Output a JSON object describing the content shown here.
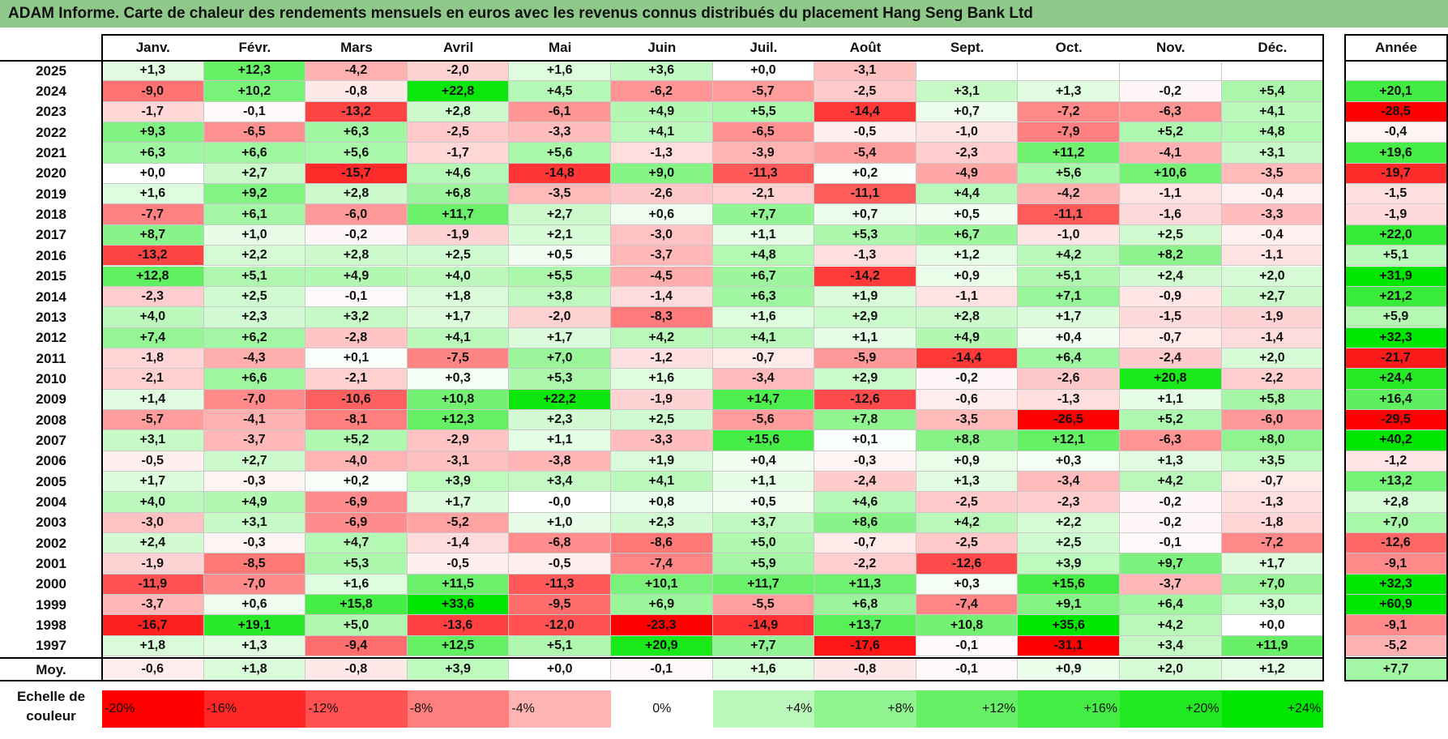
{
  "title": "ADAM Informe. Carte de chaleur des rendements mensuels en euros avec les revenus connus distribués du placement Hang Seng Bank Ltd",
  "chart_data": {
    "type": "heatmap",
    "columns": [
      "Janv.",
      "Févr.",
      "Mars",
      "Avril",
      "Mai",
      "Juin",
      "Juil.",
      "Août",
      "Sept.",
      "Oct.",
      "Nov.",
      "Déc."
    ],
    "year_column": "Année",
    "avg_label": "Moy.",
    "scale_label": "Echelle de couleur",
    "rows": [
      {
        "year": "2025",
        "values": [
          "+1,3",
          "+12,3",
          "-4,2",
          "-2,0",
          "+1,6",
          "+3,6",
          "+0,0",
          "-3,1",
          "",
          "",
          "",
          ""
        ],
        "annual": ""
      },
      {
        "year": "2024",
        "values": [
          "-9,0",
          "+10,2",
          "-0,8",
          "+22,8",
          "+4,5",
          "-6,2",
          "-5,7",
          "-2,5",
          "+3,1",
          "+1,3",
          "-0,2",
          "+5,4"
        ],
        "annual": "+20,1"
      },
      {
        "year": "2023",
        "values": [
          "-1,7",
          "-0,1",
          "-13,2",
          "+2,8",
          "-6,1",
          "+4,9",
          "+5,5",
          "-14,4",
          "+0,7",
          "-7,2",
          "-6,3",
          "+4,1"
        ],
        "annual": "-28,5"
      },
      {
        "year": "2022",
        "values": [
          "+9,3",
          "-6,5",
          "+6,3",
          "-2,5",
          "-3,3",
          "+4,1",
          "-6,5",
          "-0,5",
          "-1,0",
          "-7,9",
          "+5,2",
          "+4,8"
        ],
        "annual": "-0,4"
      },
      {
        "year": "2021",
        "values": [
          "+6,3",
          "+6,6",
          "+5,6",
          "-1,7",
          "+5,6",
          "-1,3",
          "-3,9",
          "-5,4",
          "-2,3",
          "+11,2",
          "-4,1",
          "+3,1"
        ],
        "annual": "+19,6"
      },
      {
        "year": "2020",
        "values": [
          "+0,0",
          "+2,7",
          "-15,7",
          "+4,6",
          "-14,8",
          "+9,0",
          "-11,3",
          "+0,2",
          "-4,9",
          "+5,6",
          "+10,6",
          "-3,5"
        ],
        "annual": "-19,7"
      },
      {
        "year": "2019",
        "values": [
          "+1,6",
          "+9,2",
          "+2,8",
          "+6,8",
          "-3,5",
          "-2,6",
          "-2,1",
          "-11,1",
          "+4,4",
          "-4,2",
          "-1,1",
          "-0,4"
        ],
        "annual": "-1,5"
      },
      {
        "year": "2018",
        "values": [
          "-7,7",
          "+6,1",
          "-6,0",
          "+11,7",
          "+2,7",
          "+0,6",
          "+7,7",
          "+0,7",
          "+0,5",
          "-11,1",
          "-1,6",
          "-3,3"
        ],
        "annual": "-1,9"
      },
      {
        "year": "2017",
        "values": [
          "+8,7",
          "+1,0",
          "-0,2",
          "-1,9",
          "+2,1",
          "-3,0",
          "+1,1",
          "+5,3",
          "+6,7",
          "-1,0",
          "+2,5",
          "-0,4"
        ],
        "annual": "+22,0"
      },
      {
        "year": "2016",
        "values": [
          "-13,2",
          "+2,2",
          "+2,8",
          "+2,5",
          "+0,5",
          "-3,7",
          "+4,8",
          "-1,3",
          "+1,2",
          "+4,2",
          "+8,2",
          "-1,1"
        ],
        "annual": "+5,1"
      },
      {
        "year": "2015",
        "values": [
          "+12,8",
          "+5,1",
          "+4,9",
          "+4,0",
          "+5,5",
          "-4,5",
          "+6,7",
          "-14,2",
          "+0,9",
          "+5,1",
          "+2,4",
          "+2,0"
        ],
        "annual": "+31,9"
      },
      {
        "year": "2014",
        "values": [
          "-2,3",
          "+2,5",
          "-0,1",
          "+1,8",
          "+3,8",
          "-1,4",
          "+6,3",
          "+1,9",
          "-1,1",
          "+7,1",
          "-0,9",
          "+2,7"
        ],
        "annual": "+21,2"
      },
      {
        "year": "2013",
        "values": [
          "+4,0",
          "+2,3",
          "+3,2",
          "+1,7",
          "-2,0",
          "-8,3",
          "+1,6",
          "+2,9",
          "+2,8",
          "+1,7",
          "-1,5",
          "-1,9"
        ],
        "annual": "+5,9"
      },
      {
        "year": "2012",
        "values": [
          "+7,4",
          "+6,2",
          "-2,8",
          "+4,1",
          "+1,7",
          "+4,2",
          "+4,1",
          "+1,1",
          "+4,9",
          "+0,4",
          "-0,7",
          "-1,4"
        ],
        "annual": "+32,3"
      },
      {
        "year": "2011",
        "values": [
          "-1,8",
          "-4,3",
          "+0,1",
          "-7,5",
          "+7,0",
          "-1,2",
          "-0,7",
          "-5,9",
          "-14,4",
          "+6,4",
          "-2,4",
          "+2,0"
        ],
        "annual": "-21,7"
      },
      {
        "year": "2010",
        "values": [
          "-2,1",
          "+6,6",
          "-2,1",
          "+0,3",
          "+5,3",
          "+1,6",
          "-3,4",
          "+2,9",
          "-0,2",
          "-2,6",
          "+20,8",
          "-2,2"
        ],
        "annual": "+24,4"
      },
      {
        "year": "2009",
        "values": [
          "+1,4",
          "-7,0",
          "-10,6",
          "+10,8",
          "+22,2",
          "-1,9",
          "+14,7",
          "-12,6",
          "-0,6",
          "-1,3",
          "+1,1",
          "+5,8"
        ],
        "annual": "+16,4"
      },
      {
        "year": "2008",
        "values": [
          "-5,7",
          "-4,1",
          "-8,1",
          "+12,3",
          "+2,3",
          "+2,5",
          "-5,6",
          "+7,8",
          "-3,5",
          "-26,5",
          "+5,2",
          "-6,0"
        ],
        "annual": "-29,5"
      },
      {
        "year": "2007",
        "values": [
          "+3,1",
          "-3,7",
          "+5,2",
          "-2,9",
          "+1,1",
          "-3,3",
          "+15,6",
          "+0,1",
          "+8,8",
          "+12,1",
          "-6,3",
          "+8,0"
        ],
        "annual": "+40,2"
      },
      {
        "year": "2006",
        "values": [
          "-0,5",
          "+2,7",
          "-4,0",
          "-3,1",
          "-3,8",
          "+1,9",
          "+0,4",
          "-0,3",
          "+0,9",
          "+0,3",
          "+1,3",
          "+3,5"
        ],
        "annual": "-1,2"
      },
      {
        "year": "2005",
        "values": [
          "+1,7",
          "-0,3",
          "+0,2",
          "+3,9",
          "+3,4",
          "+4,1",
          "+1,1",
          "-2,4",
          "+1,3",
          "-3,4",
          "+4,2",
          "-0,7"
        ],
        "annual": "+13,2"
      },
      {
        "year": "2004",
        "values": [
          "+4,0",
          "+4,9",
          "-6,9",
          "+1,7",
          "-0,0",
          "+0,8",
          "+0,5",
          "+4,6",
          "-2,5",
          "-2,3",
          "-0,2",
          "-1,3"
        ],
        "annual": "+2,8"
      },
      {
        "year": "2003",
        "values": [
          "-3,0",
          "+3,1",
          "-6,9",
          "-5,2",
          "+1,0",
          "+2,3",
          "+3,7",
          "+8,6",
          "+4,2",
          "+2,2",
          "-0,2",
          "-1,8"
        ],
        "annual": "+7,0"
      },
      {
        "year": "2002",
        "values": [
          "+2,4",
          "-0,3",
          "+4,7",
          "-1,4",
          "-6,8",
          "-8,6",
          "+5,0",
          "-0,7",
          "-2,5",
          "+2,5",
          "-0,1",
          "-7,2"
        ],
        "annual": "-12,6"
      },
      {
        "year": "2001",
        "values": [
          "-1,9",
          "-8,5",
          "+5,3",
          "-0,5",
          "-0,5",
          "-7,4",
          "+5,9",
          "-2,2",
          "-12,6",
          "+3,9",
          "+9,7",
          "+1,7"
        ],
        "annual": "-9,1"
      },
      {
        "year": "2000",
        "values": [
          "-11,9",
          "-7,0",
          "+1,6",
          "+11,5",
          "-11,3",
          "+10,1",
          "+11,7",
          "+11,3",
          "+0,3",
          "+15,6",
          "-3,7",
          "+7,0"
        ],
        "annual": "+32,3"
      },
      {
        "year": "1999",
        "values": [
          "-3,7",
          "+0,6",
          "+15,8",
          "+33,6",
          "-9,5",
          "+6,9",
          "-5,5",
          "+6,8",
          "-7,4",
          "+9,1",
          "+6,4",
          "+3,0"
        ],
        "annual": "+60,9"
      },
      {
        "year": "1998",
        "values": [
          "-16,7",
          "+19,1",
          "+5,0",
          "-13,6",
          "-12,0",
          "-23,3",
          "-14,9",
          "+13,7",
          "+10,8",
          "+35,6",
          "+4,2",
          "+0,0"
        ],
        "annual": "-9,1"
      },
      {
        "year": "1997",
        "values": [
          "+1,8",
          "+1,3",
          "-9,4",
          "+12,5",
          "+5,1",
          "+20,9",
          "+7,7",
          "-17,6",
          "-0,1",
          "-31,1",
          "+3,4",
          "+11,9"
        ],
        "annual": "-5,2"
      }
    ],
    "averages": [
      "-0,6",
      "+1,8",
      "-0,8",
      "+3,9",
      "+0,0",
      "-0,1",
      "+1,6",
      "-0,8",
      "-0,1",
      "+0,9",
      "+2,0",
      "+1,2"
    ],
    "average_annual": "+7,7",
    "scale": [
      {
        "label": "-20%",
        "value": -20
      },
      {
        "label": "-16%",
        "value": -16
      },
      {
        "label": "-12%",
        "value": -12
      },
      {
        "label": "-8%",
        "value": -8
      },
      {
        "label": "-4%",
        "value": -4
      },
      {
        "label": "0%",
        "value": 0
      },
      {
        "label": "+4%",
        "value": 4
      },
      {
        "label": "+8%",
        "value": 8
      },
      {
        "label": "+12%",
        "value": 12
      },
      {
        "label": "+16%",
        "value": 16
      },
      {
        "label": "+20%",
        "value": 20
      },
      {
        "label": "+24%",
        "value": 24
      }
    ],
    "colors": {
      "negative": "#ff0000",
      "neutral": "#ffffff",
      "positive": "#00e600",
      "title_bar": "#8fc98a"
    }
  }
}
